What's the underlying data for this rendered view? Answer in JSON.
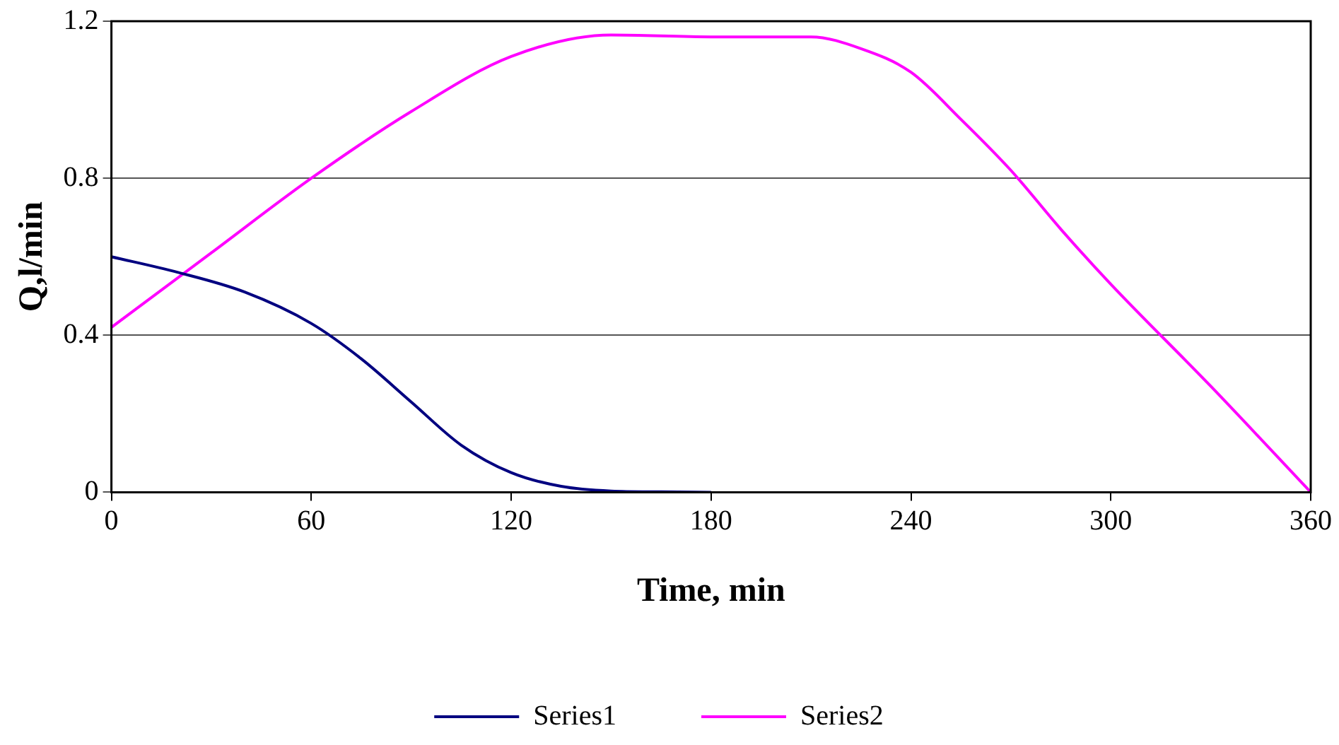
{
  "chart_data": {
    "type": "line",
    "xlabel": "Time, min",
    "ylabel": "Q,l/min",
    "xlim": [
      0,
      360
    ],
    "xticks": [
      0,
      60,
      120,
      180,
      240,
      300,
      360
    ],
    "ylim": [
      0,
      1.2
    ],
    "yticks": [
      0,
      0.4,
      0.8,
      1.2
    ],
    "grid": "y",
    "legend": "bottom",
    "marker": "none",
    "line_style": "solid",
    "series": [
      {
        "name": "Series1",
        "color": "#000080",
        "x": [
          0,
          20,
          40,
          60,
          75,
          90,
          105,
          120,
          135,
          150,
          165,
          180
        ],
        "values": [
          0.6,
          0.56,
          0.51,
          0.43,
          0.34,
          0.23,
          0.12,
          0.05,
          0.015,
          0.003,
          0.001,
          0
        ]
      },
      {
        "name": "Series2",
        "color": "#ff00ff",
        "x": [
          0,
          30,
          60,
          90,
          120,
          150,
          180,
          210,
          225,
          240,
          255,
          270,
          285,
          300,
          330,
          360
        ],
        "values": [
          0.42,
          0.61,
          0.8,
          0.97,
          1.11,
          1.165,
          1.16,
          1.16,
          1.13,
          1.07,
          0.95,
          0.82,
          0.67,
          0.53,
          0.27,
          0
        ]
      }
    ]
  }
}
